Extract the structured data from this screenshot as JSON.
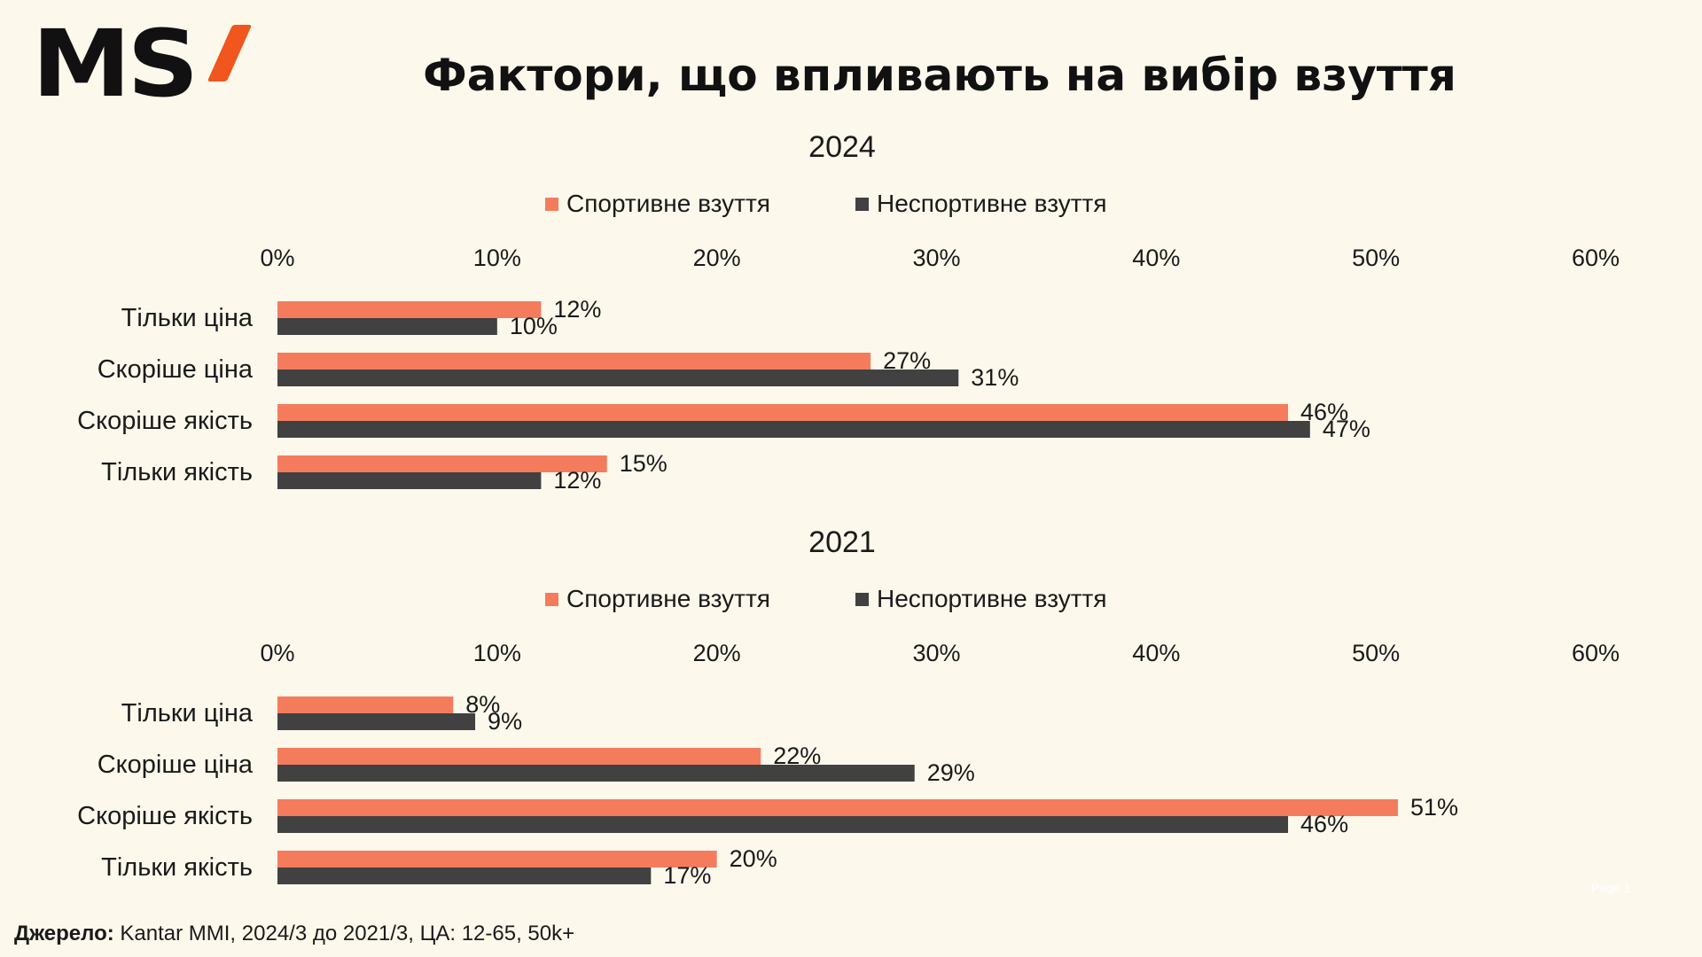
{
  "logo": {
    "text": "MS"
  },
  "title": "Фактори, що впливають на вибір взуття",
  "colors": {
    "sport": "#f47c5d",
    "nonsport": "#414141",
    "accent": "#f0561d",
    "background": "#fcf8ec"
  },
  "chart_data": [
    {
      "type": "bar",
      "orientation": "horizontal",
      "title": "2024",
      "categories": [
        "Тільки ціна",
        "Скоріше ціна",
        "Скоріше якість",
        "Тільки якість"
      ],
      "series": [
        {
          "name": "Спортивне взуття",
          "values": [
            12,
            27,
            46,
            15
          ],
          "labels": [
            "12%",
            "27%",
            "46%",
            "15%"
          ]
        },
        {
          "name": "Неспортивне взуття",
          "values": [
            10,
            31,
            47,
            12
          ],
          "labels": [
            "10%",
            "31%",
            "47%",
            "12%"
          ]
        }
      ],
      "xlim": [
        0,
        60
      ],
      "ticks": [
        "0%",
        "10%",
        "20%",
        "30%",
        "40%",
        "50%",
        "60%"
      ],
      "axis_position": "top",
      "legend": "top",
      "grid": false
    },
    {
      "type": "bar",
      "orientation": "horizontal",
      "title": "2021",
      "categories": [
        "Тільки ціна",
        "Скоріше ціна",
        "Скоріше якість",
        "Тільки якість"
      ],
      "series": [
        {
          "name": "Спортивне взуття",
          "values": [
            8,
            22,
            51,
            20
          ],
          "labels": [
            "8%",
            "22%",
            "51%",
            "20%"
          ]
        },
        {
          "name": "Неспортивне взуття",
          "values": [
            9,
            29,
            46,
            17
          ],
          "labels": [
            "9%",
            "29%",
            "46%",
            "17%"
          ]
        }
      ],
      "xlim": [
        0,
        60
      ],
      "ticks": [
        "0%",
        "10%",
        "20%",
        "30%",
        "40%",
        "50%",
        "60%"
      ],
      "axis_position": "top",
      "legend": "top",
      "grid": false
    }
  ],
  "footer": {
    "label": "Джерело:",
    "text": " Kantar MMI, 2024/3 до 2021/3, ЦА: 12-65, 50k+"
  },
  "watermark": "Page 1"
}
